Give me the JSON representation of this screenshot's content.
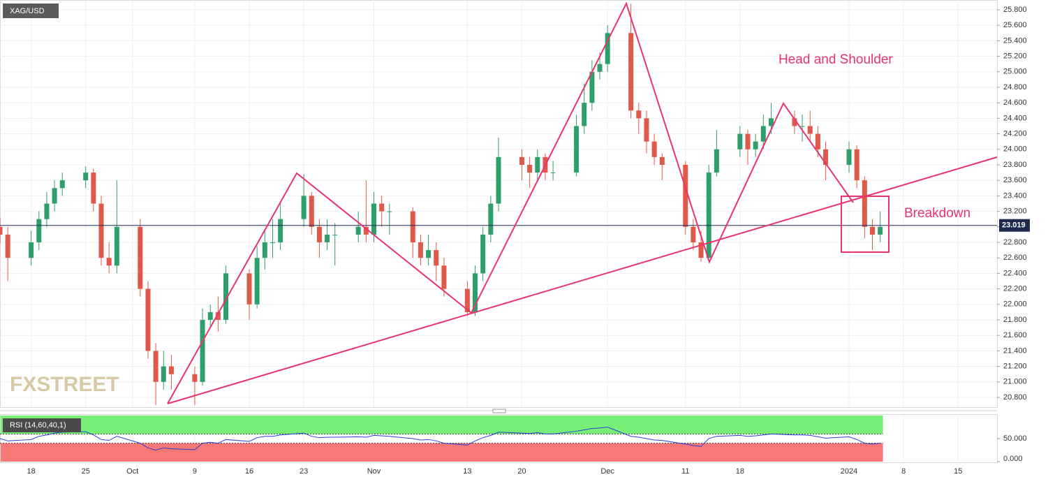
{
  "chart_data": {
    "type": "candlestick",
    "symbol": "XAG/USD",
    "watermark": "FXSTREET",
    "annotations": [
      "Head and Shoulder",
      "Breakdown"
    ],
    "up_color": "#2e9e6a",
    "down_color": "#e0584a",
    "x": [
      -4,
      -3,
      0,
      1,
      2,
      3,
      4,
      7,
      8,
      9,
      10,
      11,
      14,
      15,
      16,
      17,
      18,
      21,
      22,
      23,
      24,
      25,
      28,
      29,
      30,
      31,
      32,
      35,
      36,
      37,
      38,
      39,
      42,
      43,
      44,
      45,
      46,
      49,
      50,
      51,
      52,
      53,
      56,
      57,
      58,
      59,
      60,
      63,
      64,
      65,
      66,
      67,
      70,
      71,
      72,
      73,
      74,
      77,
      78,
      79,
      80,
      81,
      84,
      85,
      86,
      87,
      88,
      91,
      92,
      93,
      94,
      95,
      98,
      99,
      100,
      101,
      102,
      105,
      106,
      107,
      108,
      109
    ],
    "open": [
      23.0,
      22.9,
      22.6,
      22.8,
      23.1,
      23.3,
      23.5,
      23.6,
      23.7,
      23.3,
      22.6,
      22.5,
      23.0,
      22.2,
      21.4,
      21.0,
      21.2,
      21.1,
      21.0,
      21.8,
      21.9,
      21.8,
      22.4,
      22.0,
      22.6,
      22.8,
      22.8,
      23.1,
      23.4,
      23.0,
      22.8,
      22.9,
      22.9,
      23.0,
      22.9,
      23.3,
      23.2,
      23.2,
      22.8,
      22.6,
      22.7,
      22.5,
      22.2,
      21.9,
      22.4,
      22.9,
      23.3,
      23.9,
      23.8,
      23.7,
      23.9,
      23.7,
      23.7,
      24.3,
      24.6,
      25.0,
      25.1,
      25.5,
      24.5,
      24.4,
      24.1,
      23.9,
      23.8,
      23.0,
      22.8,
      22.6,
      23.7,
      24.0,
      24.2,
      24.0,
      24.1,
      24.3,
      24.4,
      24.3,
      24.3,
      24.2,
      24.0,
      23.8,
      24.0,
      23.6,
      23.0,
      22.9
    ],
    "high": [
      23.12,
      23.0,
      22.95,
      23.2,
      23.45,
      23.6,
      23.7,
      23.78,
      23.75,
      23.4,
      22.8,
      23.6,
      23.1,
      22.3,
      21.5,
      21.4,
      21.35,
      21.2,
      21.95,
      22.0,
      22.1,
      22.5,
      22.45,
      22.75,
      22.95,
      23.1,
      23.3,
      23.68,
      23.45,
      23.1,
      23.1,
      23.05,
      23.2,
      23.6,
      23.45,
      23.4,
      23.3,
      23.25,
      22.9,
      22.9,
      22.8,
      22.6,
      22.3,
      22.5,
      23.0,
      23.4,
      24.15,
      24.0,
      23.9,
      24.0,
      23.95,
      23.85,
      24.45,
      24.85,
      25.15,
      25.25,
      25.6,
      25.88,
      24.6,
      24.5,
      24.2,
      23.95,
      23.85,
      23.1,
      22.95,
      23.8,
      24.25,
      24.3,
      24.25,
      24.2,
      24.45,
      24.6,
      24.5,
      24.45,
      24.5,
      24.3,
      24.1,
      24.1,
      24.05,
      23.65,
      23.1,
      23.2
    ],
    "low": [
      22.78,
      22.3,
      22.5,
      22.7,
      23.0,
      23.2,
      23.4,
      23.5,
      23.2,
      22.5,
      22.4,
      22.4,
      22.1,
      21.3,
      20.7,
      20.9,
      20.9,
      20.7,
      20.95,
      21.7,
      21.65,
      21.75,
      21.8,
      21.95,
      22.45,
      22.6,
      22.7,
      23.0,
      22.9,
      22.6,
      22.7,
      22.5,
      22.8,
      22.8,
      22.8,
      23.0,
      22.9,
      22.6,
      22.5,
      22.5,
      22.3,
      22.1,
      21.85,
      21.85,
      22.3,
      22.8,
      23.2,
      23.6,
      23.5,
      23.6,
      23.6,
      23.6,
      23.65,
      24.2,
      24.5,
      24.9,
      25.0,
      24.4,
      24.2,
      23.95,
      23.8,
      23.6,
      22.9,
      22.7,
      22.55,
      22.6,
      23.65,
      23.9,
      23.8,
      23.9,
      24.0,
      24.2,
      24.2,
      24.1,
      24.1,
      23.9,
      23.6,
      23.7,
      23.5,
      22.85,
      22.7,
      22.8
    ],
    "close": [
      22.9,
      22.6,
      22.8,
      23.1,
      23.3,
      23.5,
      23.6,
      23.7,
      23.3,
      22.6,
      22.5,
      23.0,
      22.2,
      21.4,
      21.0,
      21.2,
      21.1,
      21.0,
      21.8,
      21.9,
      21.8,
      22.4,
      22.0,
      22.6,
      22.8,
      22.8,
      23.1,
      23.4,
      23.0,
      22.8,
      22.9,
      22.9,
      23.0,
      22.9,
      23.3,
      23.2,
      23.2,
      22.8,
      22.6,
      22.7,
      22.5,
      22.2,
      21.9,
      22.4,
      22.9,
      23.3,
      23.9,
      23.8,
      23.7,
      23.9,
      23.7,
      23.7,
      24.3,
      24.6,
      25.0,
      25.1,
      25.5,
      24.5,
      24.4,
      24.1,
      23.9,
      23.8,
      23.0,
      22.8,
      22.6,
      23.7,
      24.0,
      24.2,
      24.0,
      24.1,
      24.3,
      24.4,
      24.3,
      24.3,
      24.2,
      24.0,
      23.8,
      24.0,
      23.6,
      23.0,
      22.9,
      23.0
    ],
    "last_price": 23.019,
    "xlim": [
      -4,
      124
    ],
    "xticks": [
      {
        "value": 0,
        "label": "18"
      },
      {
        "value": 7,
        "label": "25"
      },
      {
        "value": 13,
        "label": "Oct"
      },
      {
        "value": 21,
        "label": "9"
      },
      {
        "value": 28,
        "label": "16"
      },
      {
        "value": 35,
        "label": "23"
      },
      {
        "value": 44,
        "label": "Nov"
      },
      {
        "value": 56,
        "label": "13"
      },
      {
        "value": 63,
        "label": "20"
      },
      {
        "value": 74,
        "label": "Dec"
      },
      {
        "value": 84,
        "label": "11"
      },
      {
        "value": 91,
        "label": "18"
      },
      {
        "value": 105,
        "label": "2024"
      },
      {
        "value": 112,
        "label": "8"
      },
      {
        "value": 119,
        "label": "15"
      }
    ],
    "ylim": [
      20.674,
      25.926
    ],
    "yticks": [
      {
        "value": 20.8,
        "label": "20.800"
      },
      {
        "value": 21.0,
        "label": "21.000"
      },
      {
        "value": 21.2,
        "label": "21.200"
      },
      {
        "value": 21.4,
        "label": "21.400"
      },
      {
        "value": 21.6,
        "label": "21.600"
      },
      {
        "value": 21.8,
        "label": "21.800"
      },
      {
        "value": 22.0,
        "label": "22.000"
      },
      {
        "value": 22.2,
        "label": "22.200"
      },
      {
        "value": 22.4,
        "label": "22.400"
      },
      {
        "value": 22.6,
        "label": "22.600"
      },
      {
        "value": 22.8,
        "label": "22.800"
      },
      {
        "value": 23.0,
        "label": "23.000"
      },
      {
        "value": 23.2,
        "label": "23.200"
      },
      {
        "value": 23.4,
        "label": "23.400"
      },
      {
        "value": 23.6,
        "label": "23.600"
      },
      {
        "value": 23.8,
        "label": "23.800"
      },
      {
        "value": 24.0,
        "label": "24.000"
      },
      {
        "value": 24.2,
        "label": "24.200"
      },
      {
        "value": 24.4,
        "label": "24.400"
      },
      {
        "value": 24.6,
        "label": "24.600"
      },
      {
        "value": 24.8,
        "label": "24.800"
      },
      {
        "value": 25.0,
        "label": "25.000"
      },
      {
        "value": 25.2,
        "label": "25.200"
      },
      {
        "value": 25.4,
        "label": "25.400"
      },
      {
        "value": 25.6,
        "label": "25.600"
      },
      {
        "value": 25.8,
        "label": "25.800"
      }
    ],
    "grid": true,
    "indicator": {
      "title": "RSI (14,60,40,1)",
      "color": "#2a3fd6",
      "upper_band": 60,
      "lower_band": 40,
      "ylim": [
        0,
        100
      ],
      "yticks": [
        {
          "value": 50,
          "label": "50.000"
        },
        {
          "value": 0,
          "label": "0.000"
        }
      ],
      "values": [
        50,
        45,
        48,
        55,
        58,
        62,
        64,
        65,
        58,
        48,
        46,
        55,
        40,
        30,
        25,
        30,
        28,
        26,
        40,
        42,
        40,
        48,
        44,
        52,
        55,
        55,
        58,
        62,
        55,
        52,
        53,
        53,
        54,
        53,
        57,
        56,
        55,
        50,
        47,
        48,
        45,
        40,
        36,
        45,
        52,
        57,
        64,
        62,
        61,
        63,
        60,
        60,
        66,
        69,
        72,
        73,
        75,
        55,
        53,
        50,
        47,
        46,
        38,
        35,
        33,
        50,
        55,
        57,
        55,
        56,
        58,
        60,
        58,
        58,
        57,
        54,
        51,
        54,
        48,
        40,
        38,
        40
      ]
    }
  }
}
